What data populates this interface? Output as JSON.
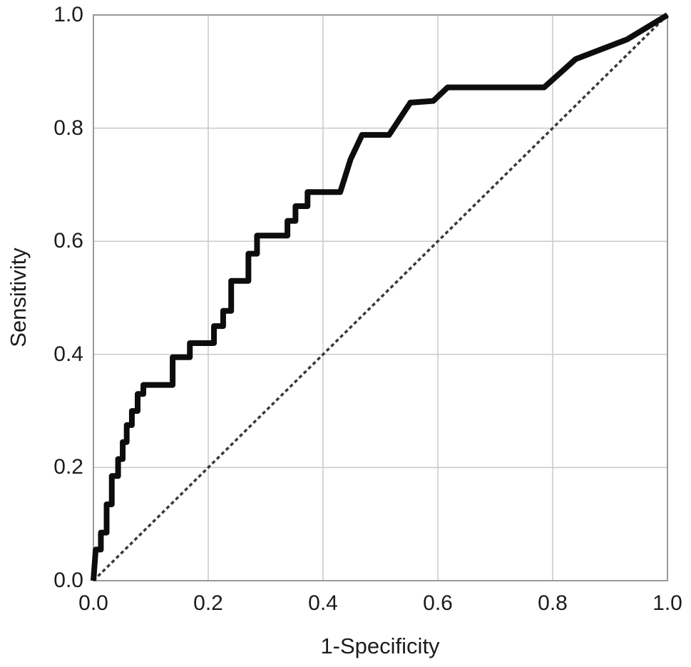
{
  "figure": {
    "background_color": "#ffffff"
  },
  "chart_data": {
    "type": "line",
    "subtype": "roc-curve",
    "title": "",
    "xlabel": "1-Specificity",
    "ylabel": "Sensitivity",
    "xlim": [
      0,
      1
    ],
    "ylim": [
      0,
      1
    ],
    "grid": true,
    "legend": "none",
    "x_tick_values": [
      0.0,
      0.2,
      0.4,
      0.6,
      0.8,
      1.0
    ],
    "x_tick_labels": [
      "0.0",
      "0.2",
      "0.4",
      "0.6",
      "0.8",
      "1.0"
    ],
    "y_tick_values": [
      0.0,
      0.2,
      0.4,
      0.6,
      0.8,
      1.0
    ],
    "y_tick_labels": [
      "0.0",
      "0.2",
      "0.4",
      "0.6",
      "0.8",
      "1.0"
    ],
    "colors": {
      "curve": "#0d0d0d",
      "reference_line": "#383838",
      "gridline": "#c9c9c9",
      "plot_border": "#9a9a9a",
      "text": "#1c1c1c"
    },
    "series": [
      {
        "name": "ROC curve",
        "style": "solid-step",
        "stroke_width": 8,
        "points": [
          [
            0.0,
            0.0
          ],
          [
            0.004,
            0.055
          ],
          [
            0.013,
            0.055
          ],
          [
            0.013,
            0.085
          ],
          [
            0.023,
            0.085
          ],
          [
            0.023,
            0.135
          ],
          [
            0.032,
            0.135
          ],
          [
            0.032,
            0.185
          ],
          [
            0.043,
            0.185
          ],
          [
            0.043,
            0.215
          ],
          [
            0.051,
            0.215
          ],
          [
            0.051,
            0.245
          ],
          [
            0.058,
            0.245
          ],
          [
            0.058,
            0.275
          ],
          [
            0.067,
            0.275
          ],
          [
            0.067,
            0.3
          ],
          [
            0.077,
            0.3
          ],
          [
            0.077,
            0.33
          ],
          [
            0.087,
            0.33
          ],
          [
            0.087,
            0.346
          ],
          [
            0.138,
            0.346
          ],
          [
            0.138,
            0.395
          ],
          [
            0.168,
            0.395
          ],
          [
            0.168,
            0.42
          ],
          [
            0.21,
            0.42
          ],
          [
            0.21,
            0.45
          ],
          [
            0.226,
            0.45
          ],
          [
            0.226,
            0.477
          ],
          [
            0.24,
            0.477
          ],
          [
            0.24,
            0.53
          ],
          [
            0.27,
            0.53
          ],
          [
            0.27,
            0.578
          ],
          [
            0.285,
            0.578
          ],
          [
            0.285,
            0.61
          ],
          [
            0.338,
            0.61
          ],
          [
            0.338,
            0.636
          ],
          [
            0.352,
            0.636
          ],
          [
            0.352,
            0.662
          ],
          [
            0.373,
            0.662
          ],
          [
            0.373,
            0.687
          ],
          [
            0.43,
            0.687
          ],
          [
            0.448,
            0.745
          ],
          [
            0.468,
            0.788
          ],
          [
            0.515,
            0.788
          ],
          [
            0.552,
            0.845
          ],
          [
            0.592,
            0.848
          ],
          [
            0.617,
            0.872
          ],
          [
            0.785,
            0.872
          ],
          [
            0.84,
            0.922
          ],
          [
            0.93,
            0.957
          ],
          [
            1.0,
            1.0
          ]
        ]
      },
      {
        "name": "Reference diagonal",
        "style": "dashed",
        "stroke_width": 3.5,
        "dash": "5,4",
        "points": [
          [
            0,
            0
          ],
          [
            1,
            1
          ]
        ]
      }
    ]
  }
}
